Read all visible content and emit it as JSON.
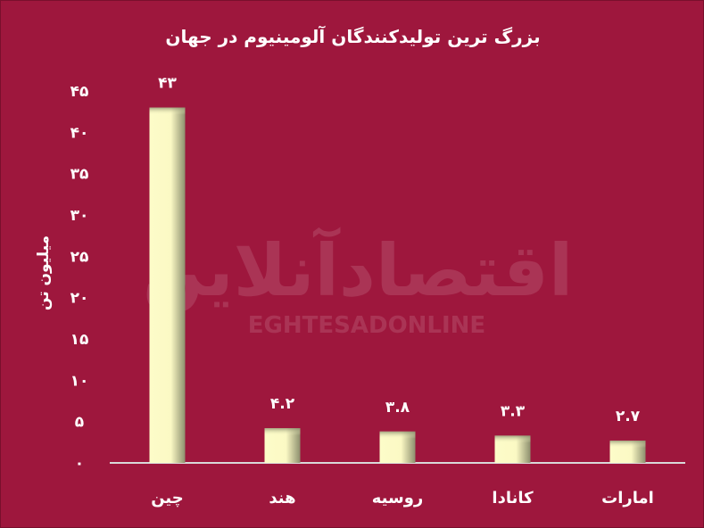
{
  "chart_data": {
    "type": "bar",
    "title": "بزرگ ترین  تولیدکنندگان آلومینیوم در جهان",
    "ylabel": "میلیون تن",
    "xlabel": "",
    "categories": [
      "چین",
      "هند",
      "روسیه",
      "کانادا",
      "امارات"
    ],
    "values": [
      43,
      4.2,
      3.8,
      3.3,
      2.7
    ],
    "data_labels": [
      "۴۳",
      "۴.۲",
      "۳.۸",
      "۳.۳",
      "۲.۷"
    ],
    "ylim": [
      0,
      45
    ],
    "yticks": [
      0,
      5,
      10,
      15,
      20,
      25,
      30,
      35,
      40,
      45
    ],
    "ytick_labels": [
      "۰",
      "۵",
      "۱۰",
      "۱۵",
      "۲۰",
      "۲۵",
      "۳۰",
      "۳۵",
      "۴۰",
      "۴۵"
    ],
    "grid": false,
    "legend": "none",
    "colors": {
      "background": "#9e173d",
      "bar": "#fdfcc9",
      "bar_shade": "#8d8f6e",
      "axis": "#d9d9d9",
      "text": "#ffffff"
    }
  },
  "watermark": {
    "text_fa": "اقتصادآنلاین",
    "text_en": "EGHTESADONLINE"
  }
}
